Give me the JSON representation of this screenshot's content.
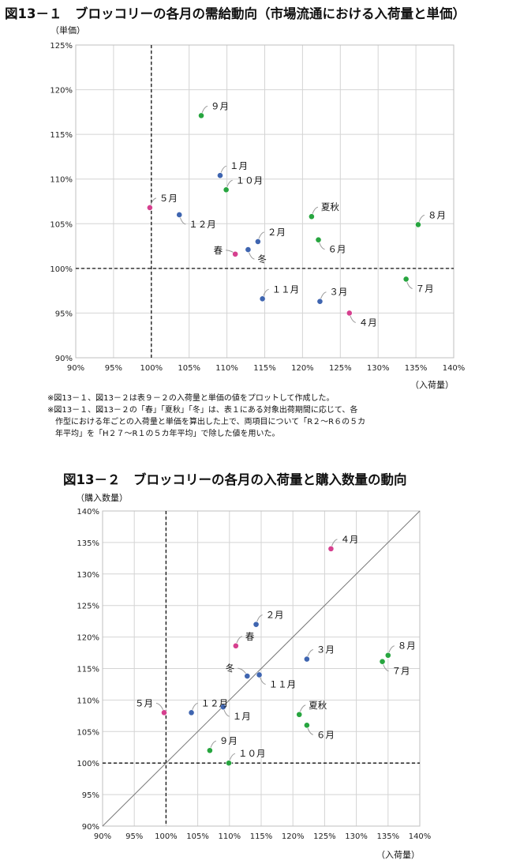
{
  "chart_data": [
    {
      "type": "scatter",
      "title": "図13－１　ブロッコリーの各月の需給動向（市場流通における入荷量と単価）",
      "ylabel": "（単価）",
      "xlabel": "（入荷量）",
      "xlim": [
        0.9,
        1.4
      ],
      "ylim": [
        0.9,
        1.25
      ],
      "xticks": [
        "90%",
        "95%",
        "100%",
        "105%",
        "110%",
        "115%",
        "120%",
        "125%",
        "130%",
        "135%",
        "140%"
      ],
      "yticks": [
        "90%",
        "95%",
        "100%",
        "105%",
        "110%",
        "115%",
        "120%",
        "125%"
      ],
      "reference_lines": {
        "x": 1.0,
        "y": 1.0
      },
      "points": [
        {
          "label": "１月",
          "x": 1.091,
          "y": 1.104,
          "color": "blue"
        },
        {
          "label": "２月",
          "x": 1.141,
          "y": 1.03,
          "color": "blue"
        },
        {
          "label": "３月",
          "x": 1.223,
          "y": 0.963,
          "color": "blue"
        },
        {
          "label": "４月",
          "x": 1.262,
          "y": 0.95,
          "color": "pink"
        },
        {
          "label": "５月",
          "x": 0.998,
          "y": 1.068,
          "color": "pink"
        },
        {
          "label": "６月",
          "x": 1.221,
          "y": 1.032,
          "color": "green"
        },
        {
          "label": "７月",
          "x": 1.337,
          "y": 0.988,
          "color": "green"
        },
        {
          "label": "８月",
          "x": 1.353,
          "y": 1.049,
          "color": "green"
        },
        {
          "label": "９月",
          "x": 1.066,
          "y": 1.171,
          "color": "green"
        },
        {
          "label": "１０月",
          "x": 1.099,
          "y": 1.088,
          "color": "green"
        },
        {
          "label": "１１月",
          "x": 1.147,
          "y": 0.966,
          "color": "blue"
        },
        {
          "label": "１２月",
          "x": 1.037,
          "y": 1.06,
          "color": "blue"
        },
        {
          "label": "春",
          "x": 1.111,
          "y": 1.016,
          "color": "pink"
        },
        {
          "label": "夏秋",
          "x": 1.212,
          "y": 1.058,
          "color": "green"
        },
        {
          "label": "冬",
          "x": 1.128,
          "y": 1.021,
          "color": "blue"
        }
      ]
    },
    {
      "type": "scatter",
      "title": "図13－２　ブロッコリーの各月の入荷量と購入数量の動向",
      "ylabel": "（購入数量）",
      "xlabel": "（入荷量）",
      "xlim": [
        0.9,
        1.4
      ],
      "ylim": [
        0.9,
        1.4
      ],
      "xticks": [
        "90%",
        "95%",
        "100%",
        "105%",
        "110%",
        "115%",
        "120%",
        "125%",
        "130%",
        "135%",
        "140%"
      ],
      "yticks": [
        "90%",
        "95%",
        "100%",
        "105%",
        "110%",
        "115%",
        "120%",
        "125%",
        "130%",
        "135%",
        "140%"
      ],
      "reference_lines": {
        "x": 1.0,
        "y": 1.0,
        "diagonal": true
      },
      "points": [
        {
          "label": "１月",
          "x": 1.09,
          "y": 1.089,
          "color": "blue"
        },
        {
          "label": "２月",
          "x": 1.142,
          "y": 1.22,
          "color": "blue"
        },
        {
          "label": "３月",
          "x": 1.222,
          "y": 1.165,
          "color": "blue"
        },
        {
          "label": "４月",
          "x": 1.26,
          "y": 1.34,
          "color": "pink"
        },
        {
          "label": "５月",
          "x": 0.997,
          "y": 1.08,
          "color": "pink"
        },
        {
          "label": "６月",
          "x": 1.222,
          "y": 1.06,
          "color": "green"
        },
        {
          "label": "７月",
          "x": 1.341,
          "y": 1.161,
          "color": "green"
        },
        {
          "label": "８月",
          "x": 1.35,
          "y": 1.171,
          "color": "green"
        },
        {
          "label": "９月",
          "x": 1.069,
          "y": 1.02,
          "color": "green"
        },
        {
          "label": "１０月",
          "x": 1.099,
          "y": 1.0,
          "color": "green"
        },
        {
          "label": "１１月",
          "x": 1.147,
          "y": 1.14,
          "color": "blue"
        },
        {
          "label": "１２月",
          "x": 1.04,
          "y": 1.08,
          "color": "blue"
        },
        {
          "label": "春",
          "x": 1.11,
          "y": 1.186,
          "color": "pink"
        },
        {
          "label": "夏秋",
          "x": 1.21,
          "y": 1.077,
          "color": "green"
        },
        {
          "label": "冬",
          "x": 1.128,
          "y": 1.138,
          "color": "blue"
        }
      ]
    }
  ],
  "notes": [
    "※図13－１、図13－２は表９－２の入荷量と単価の値をプロットして作成した。",
    "※図13－１、図13－２の「春」「夏秋」「冬」は、表１にある対象出荷期間に応じて、各",
    "作型における年ごとの入荷量と単価を算出した上で、両項目について「R２～R６の５カ",
    "年平均」を「H２７～R１の５カ年平均」で除した値を用いた。"
  ],
  "colors": {
    "blue": "#3f65b0",
    "pink": "#d6408f",
    "green": "#27a53f",
    "grid": "#d4d4d4",
    "frame": "#bfbfbf"
  }
}
